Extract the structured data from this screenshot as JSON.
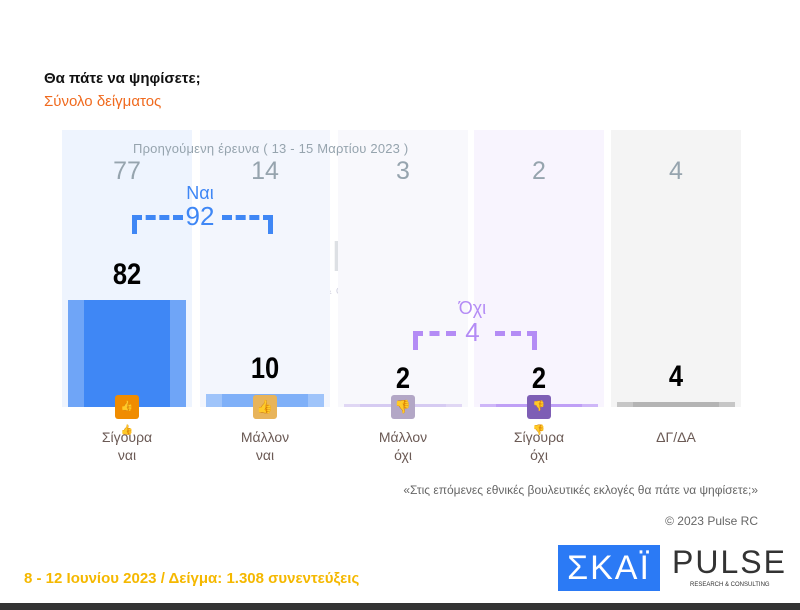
{
  "title": "Θα πάτε να ψηφίσετε;",
  "subtitle": "Σύνολο δείγματος",
  "chart_data": {
    "type": "bar",
    "categories": [
      "Σίγουρα ναι",
      "Μάλλον ναι",
      "Μάλλον όχι",
      "Σίγουρα όχι",
      "ΔΓ/ΔΑ"
    ],
    "values": [
      82,
      10,
      2,
      2,
      4
    ],
    "previous_label": "Προηγούμενη έρευνα  ( 13  -  15  Μαρτίου  2023 )",
    "previous_values": [
      77,
      14,
      3,
      2,
      4
    ],
    "groups": [
      {
        "label": "Ναι",
        "value": 92,
        "color": "#3f87f5"
      },
      {
        "label": "Όχι",
        "value": 4,
        "color": "#b48cf5"
      }
    ],
    "colors": [
      "#3f87f5",
      "#7fb0f8",
      "#c9b8ee",
      "#a77cf3",
      "#9a9a9a"
    ],
    "icons": [
      "thumbs-up-double-icon",
      "thumbs-up-icon",
      "thumbs-down-icon",
      "thumbs-down-double-icon"
    ],
    "icon_colors": [
      "#f08c00",
      "#e8b45a",
      "#b3a7c6",
      "#7e5eb5"
    ]
  },
  "question": "«Στις επόμενες εθνικές βουλευτικές εκλογές θα πάτε να ψηφίσετε;»",
  "copyright": "© 2023 Pulse RC",
  "footer": "8 - 12  Ιουνίου  2023  /  Δείγμα:  1.308 συνεντεύξεις",
  "logos": {
    "skai": "ΣΚΑΪ",
    "pulse": "PULSE",
    "pulse_sub": "RESEARCH & CONSULTING"
  },
  "cat_lines": [
    [
      "Σίγουρα",
      "ναι"
    ],
    [
      "Μάλλον",
      "ναι"
    ],
    [
      "Μάλλον",
      "όχι"
    ],
    [
      "Σίγουρα",
      "όχι"
    ],
    [
      "ΔΓ/ΔΑ",
      ""
    ]
  ]
}
